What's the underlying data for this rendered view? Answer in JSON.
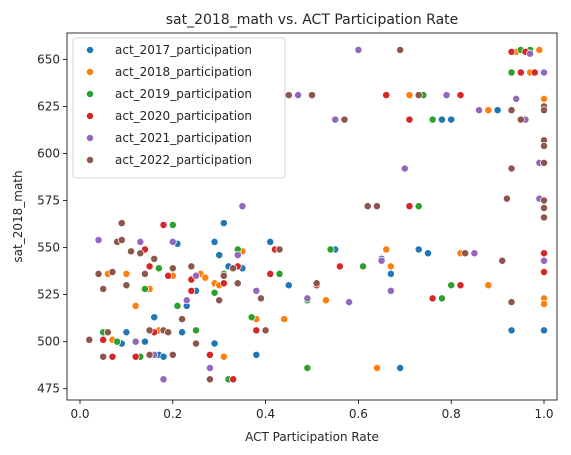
{
  "chart_data": {
    "type": "scatter",
    "title": "sat_2018_math vs. ACT Participation Rate",
    "xlabel": "ACT Participation Rate",
    "ylabel": "sat_2018_math",
    "xlim": [
      -0.028,
      1.028
    ],
    "ylim": [
      469,
      664
    ],
    "x_ticks": [
      0.0,
      0.2,
      0.4,
      0.6,
      0.8,
      1.0
    ],
    "x_tick_labels": [
      "0.0",
      "0.2",
      "0.4",
      "0.6",
      "0.8",
      "1.0"
    ],
    "y_ticks": [
      475,
      500,
      525,
      550,
      575,
      600,
      625,
      650
    ],
    "y_tick_labels": [
      "475",
      "500",
      "525",
      "550",
      "575",
      "600",
      "625",
      "650"
    ],
    "legend_position": "top-left",
    "grid": false,
    "series": [
      {
        "name": "act_2017_participation",
        "color": "#1f77b4",
        "points": [
          [
            0.08,
            500
          ],
          [
            0.09,
            499
          ],
          [
            0.1,
            505
          ],
          [
            0.14,
            500
          ],
          [
            0.16,
            513
          ],
          [
            0.17,
            493
          ],
          [
            0.18,
            492
          ],
          [
            0.2,
            535
          ],
          [
            0.2,
            553
          ],
          [
            0.21,
            552
          ],
          [
            0.22,
            505
          ],
          [
            0.23,
            519
          ],
          [
            0.25,
            527
          ],
          [
            0.29,
            553
          ],
          [
            0.29,
            499
          ],
          [
            0.3,
            546
          ],
          [
            0.31,
            563
          ],
          [
            0.32,
            540
          ],
          [
            0.35,
            539
          ],
          [
            0.38,
            493
          ],
          [
            0.41,
            553
          ],
          [
            0.45,
            530
          ],
          [
            0.55,
            549
          ],
          [
            0.62,
            572
          ],
          [
            0.65,
            544
          ],
          [
            0.66,
            631
          ],
          [
            0.67,
            536
          ],
          [
            0.69,
            486
          ],
          [
            0.73,
            549
          ],
          [
            0.75,
            547
          ],
          [
            0.78,
            618
          ],
          [
            0.8,
            618
          ],
          [
            0.9,
            623
          ],
          [
            0.93,
            506
          ],
          [
            1.0,
            506
          ]
        ]
      },
      {
        "name": "act_2018_participation",
        "color": "#ff7f0e",
        "points": [
          [
            0.06,
            536
          ],
          [
            0.07,
            501
          ],
          [
            0.1,
            536
          ],
          [
            0.12,
            519
          ],
          [
            0.15,
            528
          ],
          [
            0.17,
            506
          ],
          [
            0.2,
            535
          ],
          [
            0.25,
            535
          ],
          [
            0.26,
            536
          ],
          [
            0.27,
            534
          ],
          [
            0.29,
            531
          ],
          [
            0.3,
            530
          ],
          [
            0.31,
            492
          ],
          [
            0.35,
            548
          ],
          [
            0.38,
            512
          ],
          [
            0.44,
            512
          ],
          [
            0.53,
            522
          ],
          [
            0.64,
            486
          ],
          [
            0.66,
            549
          ],
          [
            0.67,
            540
          ],
          [
            0.71,
            631
          ],
          [
            0.76,
            618
          ],
          [
            0.82,
            547
          ],
          [
            0.88,
            623
          ],
          [
            0.94,
            654
          ],
          [
            0.97,
            643
          ],
          [
            0.99,
            655
          ],
          [
            1.0,
            629
          ],
          [
            1.0,
            523
          ],
          [
            1.0,
            520
          ],
          [
            0.88,
            530
          ]
        ]
      },
      {
        "name": "act_2019_participation",
        "color": "#2ca02c",
        "points": [
          [
            0.05,
            505
          ],
          [
            0.08,
            500
          ],
          [
            0.13,
            492
          ],
          [
            0.14,
            528
          ],
          [
            0.17,
            539
          ],
          [
            0.2,
            562
          ],
          [
            0.21,
            519
          ],
          [
            0.25,
            506
          ],
          [
            0.29,
            526
          ],
          [
            0.31,
            536
          ],
          [
            0.32,
            480
          ],
          [
            0.34,
            549
          ],
          [
            0.37,
            513
          ],
          [
            0.43,
            536
          ],
          [
            0.49,
            486
          ],
          [
            0.49,
            522
          ],
          [
            0.54,
            549
          ],
          [
            0.61,
            540
          ],
          [
            0.66,
            631
          ],
          [
            0.73,
            572
          ],
          [
            0.74,
            631
          ],
          [
            0.76,
            618
          ],
          [
            0.78,
            523
          ],
          [
            0.8,
            530
          ],
          [
            0.95,
            655
          ],
          [
            0.97,
            655
          ],
          [
            0.93,
            643
          ]
        ]
      },
      {
        "name": "act_2020_participation",
        "color": "#d62728",
        "points": [
          [
            0.05,
            501
          ],
          [
            0.07,
            492
          ],
          [
            0.12,
            492
          ],
          [
            0.14,
            549
          ],
          [
            0.15,
            540
          ],
          [
            0.16,
            505
          ],
          [
            0.18,
            562
          ],
          [
            0.19,
            535
          ],
          [
            0.24,
            527
          ],
          [
            0.24,
            533
          ],
          [
            0.28,
            493
          ],
          [
            0.31,
            531
          ],
          [
            0.33,
            480
          ],
          [
            0.34,
            540
          ],
          [
            0.38,
            506
          ],
          [
            0.41,
            536
          ],
          [
            0.42,
            549
          ],
          [
            0.51,
            530
          ],
          [
            0.56,
            540
          ],
          [
            0.66,
            631
          ],
          [
            0.71,
            618
          ],
          [
            0.71,
            572
          ],
          [
            0.76,
            523
          ],
          [
            0.82,
            530
          ],
          [
            0.82,
            631
          ],
          [
            0.93,
            654
          ],
          [
            0.95,
            643
          ],
          [
            0.98,
            643
          ],
          [
            1.0,
            595
          ],
          [
            1.0,
            547
          ],
          [
            1.0,
            543
          ],
          [
            1.0,
            537
          ],
          [
            0.96,
            654
          ]
        ]
      },
      {
        "name": "act_2021_participation",
        "color": "#9467bd",
        "points": [
          [
            0.04,
            554
          ],
          [
            0.05,
            528
          ],
          [
            0.06,
            505
          ],
          [
            0.12,
            500
          ],
          [
            0.13,
            553
          ],
          [
            0.16,
            493
          ],
          [
            0.18,
            480
          ],
          [
            0.2,
            553
          ],
          [
            0.23,
            522
          ],
          [
            0.25,
            535
          ],
          [
            0.28,
            486
          ],
          [
            0.34,
            546
          ],
          [
            0.35,
            572
          ],
          [
            0.38,
            527
          ],
          [
            0.47,
            631
          ],
          [
            0.49,
            523
          ],
          [
            0.55,
            618
          ],
          [
            0.58,
            521
          ],
          [
            0.6,
            655
          ],
          [
            0.65,
            543
          ],
          [
            0.67,
            527
          ],
          [
            0.7,
            592
          ],
          [
            0.79,
            631
          ],
          [
            0.85,
            547
          ],
          [
            0.86,
            623
          ],
          [
            0.94,
            629
          ],
          [
            0.97,
            653
          ],
          [
            0.99,
            595
          ],
          [
            0.99,
            576
          ],
          [
            1.0,
            643
          ],
          [
            1.0,
            543
          ],
          [
            0.96,
            618
          ]
        ]
      },
      {
        "name": "act_2022_participation",
        "color": "#8c564b",
        "points": [
          [
            0.02,
            501
          ],
          [
            0.04,
            536
          ],
          [
            0.05,
            528
          ],
          [
            0.05,
            492
          ],
          [
            0.06,
            505
          ],
          [
            0.07,
            537
          ],
          [
            0.08,
            553
          ],
          [
            0.09,
            554
          ],
          [
            0.09,
            563
          ],
          [
            0.1,
            530
          ],
          [
            0.11,
            548
          ],
          [
            0.13,
            547
          ],
          [
            0.14,
            536
          ],
          [
            0.15,
            506
          ],
          [
            0.15,
            493
          ],
          [
            0.16,
            544
          ],
          [
            0.18,
            506
          ],
          [
            0.19,
            505
          ],
          [
            0.2,
            539
          ],
          [
            0.2,
            493
          ],
          [
            0.22,
            512
          ],
          [
            0.24,
            540
          ],
          [
            0.25,
            499
          ],
          [
            0.28,
            480
          ],
          [
            0.3,
            522
          ],
          [
            0.31,
            535
          ],
          [
            0.33,
            539
          ],
          [
            0.34,
            531
          ],
          [
            0.39,
            523
          ],
          [
            0.4,
            506
          ],
          [
            0.43,
            549
          ],
          [
            0.51,
            531
          ],
          [
            0.62,
            572
          ],
          [
            0.64,
            572
          ],
          [
            0.69,
            655
          ],
          [
            0.73,
            631
          ],
          [
            0.83,
            547
          ],
          [
            0.91,
            543
          ],
          [
            0.92,
            576
          ],
          [
            0.93,
            592
          ],
          [
            0.93,
            623
          ],
          [
            0.95,
            618
          ],
          [
            0.93,
            521
          ],
          [
            1.0,
            607
          ],
          [
            1.0,
            604
          ],
          [
            1.0,
            575
          ],
          [
            1.0,
            571
          ],
          [
            1.0,
            566
          ],
          [
            1.0,
            625
          ],
          [
            1.0,
            623
          ],
          [
            1.0,
            595
          ],
          [
            0.5,
            631
          ],
          [
            0.57,
            618
          ],
          [
            0.45,
            631
          ]
        ]
      }
    ]
  }
}
